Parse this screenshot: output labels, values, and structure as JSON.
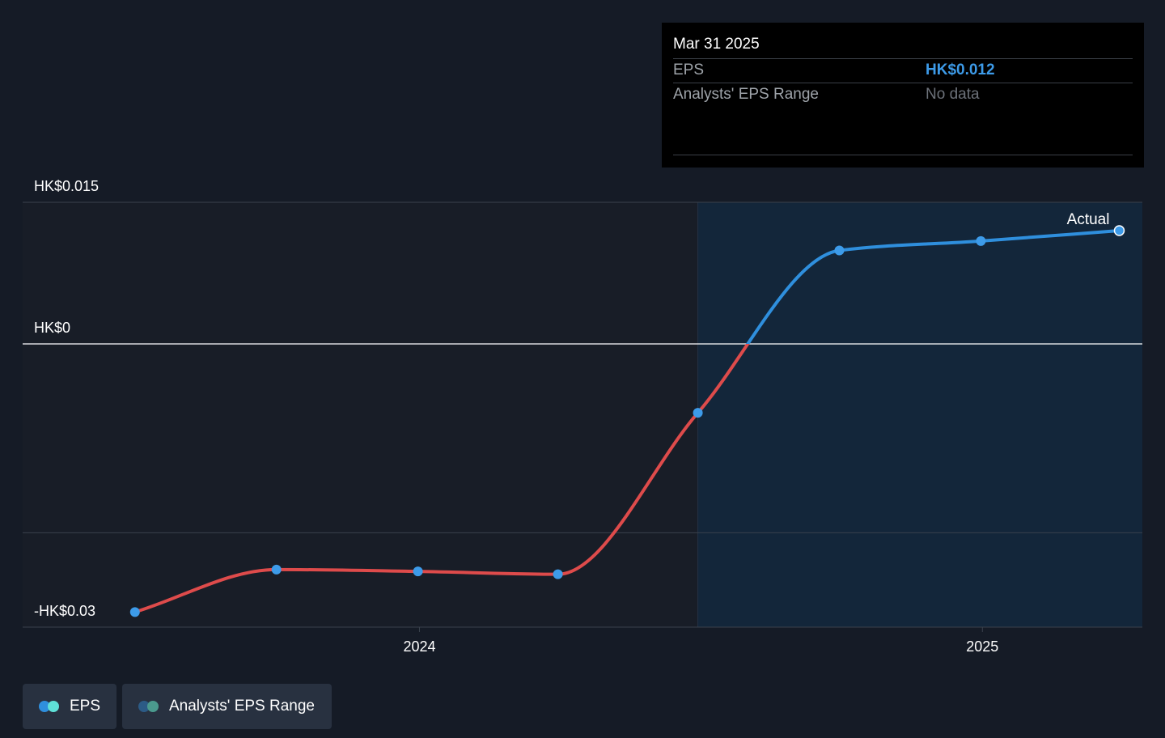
{
  "tooltip": {
    "date": "Mar 31 2025",
    "eps_label": "EPS",
    "eps_value": "HK$0.012",
    "range_label": "Analysts' EPS Range",
    "range_value": "No data"
  },
  "legend": {
    "eps_label": "EPS",
    "range_label": "Analysts' EPS Range"
  },
  "colors": {
    "background": "#151b26",
    "positive_line": "#2f8fdd",
    "negative_line": "#de4b4b",
    "point": "#3d9be9",
    "future_region": "#13263a"
  },
  "chart_data": {
    "type": "line",
    "title": "",
    "xlabel": "",
    "ylabel": "",
    "y_ticks": [
      {
        "value": 0.015,
        "label": "HK$0.015"
      },
      {
        "value": 0,
        "label": "HK$0"
      },
      {
        "value": -0.03,
        "label": "-HK$0.03"
      }
    ],
    "x_ticks": [
      {
        "date": "2024-01-01",
        "label": "2024"
      },
      {
        "date": "2025-01-01",
        "label": "2025"
      }
    ],
    "ylim": [
      -0.03,
      0.015
    ],
    "xlim": [
      "2023-04-18",
      "2025-04-15"
    ],
    "shaded_from": "2024-06-30",
    "annotation": {
      "text": "Actual",
      "date": "2025-03-31"
    },
    "series": [
      {
        "name": "EPS",
        "x": [
          "2023-06-30",
          "2023-09-30",
          "2023-12-31",
          "2024-03-31",
          "2024-06-30",
          "2024-09-30",
          "2024-12-31",
          "2025-03-31"
        ],
        "values": [
          -0.0284,
          -0.0239,
          -0.0241,
          -0.0244,
          -0.0073,
          0.0099,
          0.0109,
          0.012
        ]
      }
    ]
  }
}
